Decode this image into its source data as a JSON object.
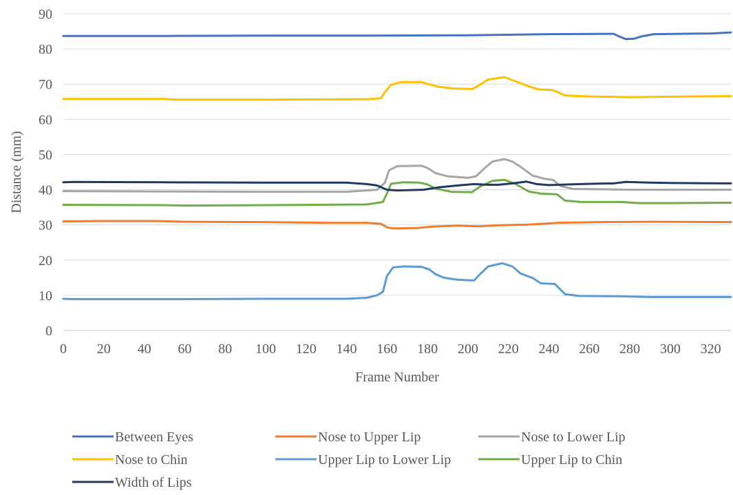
{
  "chart_data": {
    "type": "line",
    "title": "",
    "xlabel": "Frame Number",
    "ylabel": "Distance (mm)",
    "xlim": [
      0,
      330
    ],
    "ylim": [
      0,
      90
    ],
    "x_ticks": [
      0,
      20,
      40,
      60,
      80,
      100,
      120,
      140,
      160,
      180,
      200,
      220,
      240,
      260,
      280,
      300,
      320
    ],
    "y_ticks": [
      0,
      10,
      20,
      30,
      40,
      50,
      60,
      70,
      80,
      90
    ],
    "grid": "horizontal",
    "legend_position": "bottom",
    "series": [
      {
        "name": "Between Eyes",
        "color": "#4472C4",
        "points": [
          [
            0,
            83.7
          ],
          [
            50,
            83.7
          ],
          [
            100,
            83.8
          ],
          [
            150,
            83.8
          ],
          [
            200,
            83.9
          ],
          [
            240,
            84.2
          ],
          [
            272,
            84.3
          ],
          [
            275,
            83.5
          ],
          [
            278,
            82.8
          ],
          [
            282,
            82.9
          ],
          [
            286,
            83.6
          ],
          [
            292,
            84.2
          ],
          [
            320,
            84.4
          ],
          [
            330,
            84.7
          ]
        ]
      },
      {
        "name": "Nose to Upper Lip",
        "color": "#ED7D31",
        "points": [
          [
            0,
            31
          ],
          [
            20,
            31.1
          ],
          [
            45,
            31.1
          ],
          [
            60,
            30.9
          ],
          [
            100,
            30.8
          ],
          [
            130,
            30.6
          ],
          [
            150,
            30.6
          ],
          [
            157,
            30.3
          ],
          [
            160,
            29.3
          ],
          [
            163,
            29
          ],
          [
            175,
            29.1
          ],
          [
            182,
            29.5
          ],
          [
            195,
            29.8
          ],
          [
            205,
            29.6
          ],
          [
            215,
            29.9
          ],
          [
            230,
            30.1
          ],
          [
            245,
            30.6
          ],
          [
            265,
            30.8
          ],
          [
            290,
            30.9
          ],
          [
            330,
            30.8
          ]
        ]
      },
      {
        "name": "Nose to Lower Lip",
        "color": "#A5A5A5",
        "points": [
          [
            0,
            39.6
          ],
          [
            50,
            39.5
          ],
          [
            100,
            39.4
          ],
          [
            140,
            39.4
          ],
          [
            155,
            40
          ],
          [
            159,
            42
          ],
          [
            161,
            45.5
          ],
          [
            165,
            46.7
          ],
          [
            177,
            46.8
          ],
          [
            180,
            46.2
          ],
          [
            184,
            44.7
          ],
          [
            190,
            43.8
          ],
          [
            200,
            43.4
          ],
          [
            204,
            43.8
          ],
          [
            208,
            46
          ],
          [
            212,
            48
          ],
          [
            218,
            48.7
          ],
          [
            222,
            48
          ],
          [
            226,
            46.5
          ],
          [
            232,
            44
          ],
          [
            238,
            43.1
          ],
          [
            242,
            42.8
          ],
          [
            246,
            41
          ],
          [
            252,
            40.2
          ],
          [
            270,
            40.1
          ],
          [
            280,
            40
          ],
          [
            300,
            40
          ],
          [
            330,
            40
          ]
        ]
      },
      {
        "name": "Nose to Chin",
        "color": "#FFC000",
        "points": [
          [
            0,
            65.8
          ],
          [
            50,
            65.8
          ],
          [
            55,
            65.6
          ],
          [
            100,
            65.6
          ],
          [
            150,
            65.7
          ],
          [
            157,
            66
          ],
          [
            159,
            67.8
          ],
          [
            162,
            69.8
          ],
          [
            167,
            70.6
          ],
          [
            177,
            70.6
          ],
          [
            181,
            69.9
          ],
          [
            185,
            69.3
          ],
          [
            192,
            68.8
          ],
          [
            202,
            68.6
          ],
          [
            205,
            69.5
          ],
          [
            210,
            71.3
          ],
          [
            218,
            72
          ],
          [
            223,
            70.9
          ],
          [
            230,
            69.4
          ],
          [
            235,
            68.5
          ],
          [
            242,
            68.3
          ],
          [
            248,
            66.8
          ],
          [
            260,
            66.5
          ],
          [
            280,
            66.3
          ],
          [
            310,
            66.5
          ],
          [
            330,
            66.6
          ]
        ]
      },
      {
        "name": "Upper Lip to Lower Lip",
        "color": "#5B9BD5",
        "points": [
          [
            0,
            9
          ],
          [
            5,
            8.9
          ],
          [
            60,
            8.9
          ],
          [
            100,
            9
          ],
          [
            140,
            9
          ],
          [
            150,
            9.3
          ],
          [
            155,
            10
          ],
          [
            158,
            11
          ],
          [
            160,
            15.5
          ],
          [
            163,
            17.9
          ],
          [
            168,
            18.2
          ],
          [
            177,
            18.1
          ],
          [
            181,
            17.3
          ],
          [
            184,
            16
          ],
          [
            188,
            15
          ],
          [
            195,
            14.4
          ],
          [
            203,
            14.2
          ],
          [
            206,
            16
          ],
          [
            210,
            18.2
          ],
          [
            217,
            19.1
          ],
          [
            222,
            18.2
          ],
          [
            226,
            16.2
          ],
          [
            232,
            14.9
          ],
          [
            236,
            13.4
          ],
          [
            243,
            13.2
          ],
          [
            248,
            10.3
          ],
          [
            255,
            9.8
          ],
          [
            275,
            9.7
          ],
          [
            290,
            9.5
          ],
          [
            330,
            9.5
          ]
        ]
      },
      {
        "name": "Upper Lip to Chin",
        "color": "#70AD47",
        "points": [
          [
            0,
            35.7
          ],
          [
            50,
            35.6
          ],
          [
            60,
            35.5
          ],
          [
            100,
            35.6
          ],
          [
            150,
            35.8
          ],
          [
            158,
            36.5
          ],
          [
            160,
            39
          ],
          [
            162,
            41.7
          ],
          [
            168,
            42.1
          ],
          [
            176,
            42
          ],
          [
            180,
            41.5
          ],
          [
            184,
            40.3
          ],
          [
            192,
            39.4
          ],
          [
            202,
            39.3
          ],
          [
            206,
            40.9
          ],
          [
            212,
            42.5
          ],
          [
            218,
            42.8
          ],
          [
            223,
            41.8
          ],
          [
            230,
            39.5
          ],
          [
            236,
            38.9
          ],
          [
            244,
            38.7
          ],
          [
            248,
            36.9
          ],
          [
            256,
            36.5
          ],
          [
            276,
            36.5
          ],
          [
            284,
            36.2
          ],
          [
            300,
            36.2
          ],
          [
            330,
            36.3
          ]
        ]
      },
      {
        "name": "Width of Lips",
        "color": "#203864",
        "points": [
          [
            0,
            42.1
          ],
          [
            5,
            42.2
          ],
          [
            50,
            42.1
          ],
          [
            100,
            42
          ],
          [
            140,
            42
          ],
          [
            150,
            41.6
          ],
          [
            155,
            41.2
          ],
          [
            160,
            40
          ],
          [
            165,
            39.8
          ],
          [
            178,
            40
          ],
          [
            186,
            40.7
          ],
          [
            195,
            41.2
          ],
          [
            203,
            41.6
          ],
          [
            210,
            41.4
          ],
          [
            215,
            41.4
          ],
          [
            222,
            41.8
          ],
          [
            229,
            42.3
          ],
          [
            234,
            41.6
          ],
          [
            240,
            41.3
          ],
          [
            250,
            41.5
          ],
          [
            262,
            41.7
          ],
          [
            272,
            41.8
          ],
          [
            278,
            42.2
          ],
          [
            290,
            42
          ],
          [
            300,
            41.9
          ],
          [
            330,
            41.8
          ]
        ]
      }
    ]
  }
}
